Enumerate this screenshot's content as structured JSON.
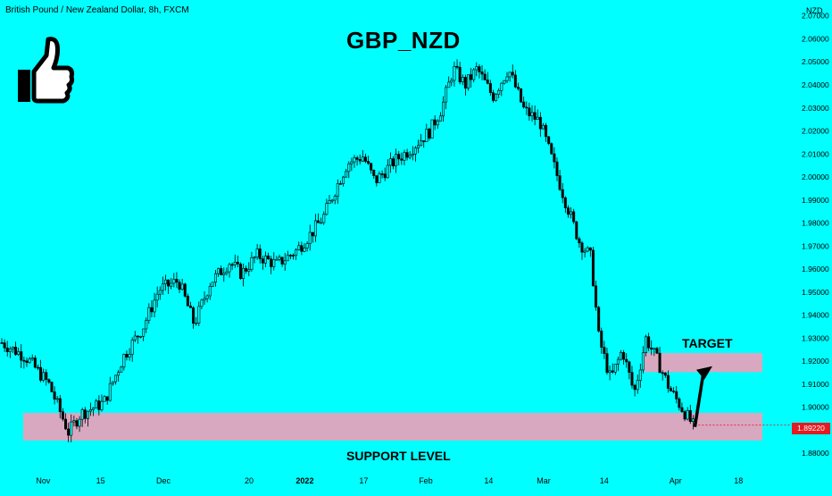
{
  "header": {
    "symbol_line": "British Pound / New Zealand Dollar, 8h, FXCM"
  },
  "annotations": {
    "title": "GBP_NZD",
    "target_label": "TARGET",
    "support_label": "SUPPORT LEVEL",
    "currency": "NZD",
    "current_price": "1.89220"
  },
  "icons": [
    "thumbs-up-icon"
  ],
  "colors": {
    "background": "#00ffff",
    "candle": "#000000",
    "zone": "#d8a8c0",
    "price_badge": "#e31b23"
  },
  "chart_data": {
    "type": "candlestick",
    "title": "GBP_NZD",
    "ylim": [
      1.875,
      2.073
    ],
    "y_ticks": [
      "2.07000",
      "2.06000",
      "2.05000",
      "2.04000",
      "2.03000",
      "2.02000",
      "2.01000",
      "2.00000",
      "1.99000",
      "1.98000",
      "1.97000",
      "1.96000",
      "1.95000",
      "1.94000",
      "1.93000",
      "1.92000",
      "1.91000",
      "1.90000",
      "1.88000"
    ],
    "x_ticks": [
      "Nov",
      "15",
      "Dec",
      "20",
      "2022",
      "17",
      "Feb",
      "14",
      "Mar",
      "14",
      "Apr",
      "18"
    ],
    "x_tick_bold": [
      "2022"
    ],
    "close_path": [
      [
        0.0,
        1.928
      ],
      [
        0.03,
        1.922
      ],
      [
        0.06,
        1.91
      ],
      [
        0.085,
        1.889
      ],
      [
        0.1,
        1.897
      ],
      [
        0.13,
        1.902
      ],
      [
        0.155,
        1.922
      ],
      [
        0.18,
        1.935
      ],
      [
        0.2,
        1.951
      ],
      [
        0.225,
        1.955
      ],
      [
        0.245,
        1.936
      ],
      [
        0.265,
        1.954
      ],
      [
        0.29,
        1.963
      ],
      [
        0.305,
        1.958
      ],
      [
        0.325,
        1.966
      ],
      [
        0.35,
        1.962
      ],
      [
        0.375,
        1.968
      ],
      [
        0.395,
        1.976
      ],
      [
        0.41,
        1.983
      ],
      [
        0.425,
        1.995
      ],
      [
        0.44,
        2.006
      ],
      [
        0.46,
        2.009
      ],
      [
        0.475,
        1.998
      ],
      [
        0.5,
        2.007
      ],
      [
        0.52,
        2.012
      ],
      [
        0.545,
        2.02
      ],
      [
        0.56,
        2.03
      ],
      [
        0.575,
        2.047
      ],
      [
        0.59,
        2.04
      ],
      [
        0.605,
        2.047
      ],
      [
        0.625,
        2.035
      ],
      [
        0.645,
        2.047
      ],
      [
        0.665,
        2.029
      ],
      [
        0.685,
        2.024
      ],
      [
        0.7,
        2.008
      ],
      [
        0.715,
        1.992
      ],
      [
        0.735,
        1.972
      ],
      [
        0.75,
        1.965
      ],
      [
        0.76,
        1.93
      ],
      [
        0.775,
        1.912
      ],
      [
        0.79,
        1.925
      ],
      [
        0.805,
        1.906
      ],
      [
        0.82,
        1.93
      ],
      [
        0.835,
        1.92
      ],
      [
        0.85,
        1.908
      ],
      [
        0.865,
        1.9
      ],
      [
        0.88,
        1.892
      ]
    ],
    "support_zone": [
      1.8855,
      1.8975
    ],
    "target_zone": [
      1.9152,
      1.9235
    ]
  }
}
